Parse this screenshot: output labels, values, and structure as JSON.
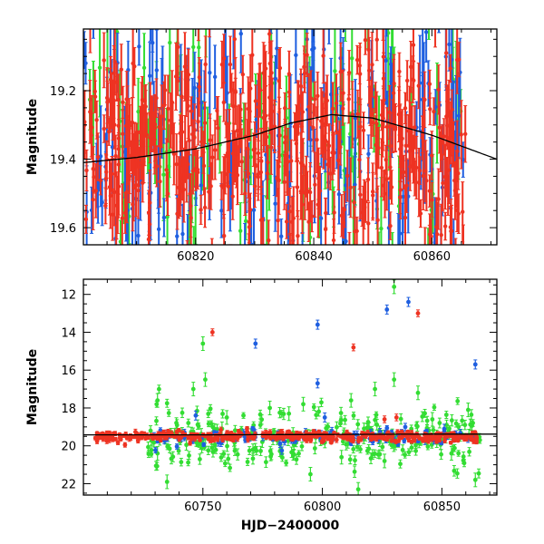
{
  "chart_data": [
    {
      "type": "scatter",
      "title": "",
      "xlabel": "",
      "ylabel": "Magnitude",
      "xlim": [
        60801,
        60871
      ],
      "ylim": [
        19.65,
        19.02
      ],
      "y_inverted": true,
      "xticks": [
        60820,
        60840,
        60860
      ],
      "xtick_labels": [
        "60820",
        "60840",
        "60860"
      ],
      "yticks": [
        19.2,
        19.4,
        19.6
      ],
      "ytick_labels": [
        "19.2",
        "19.4",
        "19.6"
      ],
      "description_of_series": "dense overlapping photometry in three bands with large error bars plus a smooth model curve",
      "series": [
        {
          "color": "#33dd33",
          "n_points": 120,
          "x_range": [
            60801,
            60866
          ],
          "y_center": 19.35,
          "y_spread": 0.2,
          "err": [
            0.05,
            0.15
          ]
        },
        {
          "color": "#1f5fe0",
          "n_points": 200,
          "x_range": [
            60801,
            60866
          ],
          "y_center": 19.35,
          "y_spread": 0.22,
          "err": [
            0.05,
            0.15
          ]
        },
        {
          "color": "#ee3322",
          "n_points": 520,
          "x_range": [
            60801,
            60866
          ],
          "y_center": 19.36,
          "y_spread": 0.17,
          "err": [
            0.04,
            0.1
          ]
        }
      ],
      "model_curve": {
        "color": "#000000",
        "x": [
          60801,
          60810,
          60820,
          60830,
          60836,
          60843,
          60850,
          60860,
          60871
        ],
        "y": [
          19.41,
          19.395,
          19.37,
          19.33,
          19.295,
          19.27,
          19.28,
          19.33,
          19.4
        ]
      }
    },
    {
      "type": "scatter",
      "title": "",
      "xlabel": "HJD−2400000",
      "ylabel": "Magnitude",
      "xlim": [
        60700,
        60873
      ],
      "ylim": [
        22.6,
        11.2
      ],
      "y_inverted": true,
      "xticks": [
        60750,
        60800,
        60850
      ],
      "xtick_labels": [
        "60750",
        "60800",
        "60850"
      ],
      "yticks": [
        12,
        14,
        16,
        18,
        20,
        22
      ],
      "ytick_labels": [
        "12",
        "14",
        "16",
        "18",
        "20",
        "22"
      ],
      "series": [
        {
          "color": "#33dd33",
          "n_points": 260,
          "x_range": [
            60727,
            60866
          ],
          "y_center": 19.6,
          "y_spread": 1.3,
          "err": [
            0.15,
            0.3
          ],
          "outliers": [
            [
              60731,
              17.6
            ],
            [
              60731,
              20.4
            ],
            [
              60735,
              21.9
            ],
            [
              60746,
              17.0
            ],
            [
              60750,
              14.6
            ],
            [
              60751,
              16.5
            ],
            [
              60758,
              19.1
            ],
            [
              60760,
              18.5
            ],
            [
              60778,
              18.0
            ],
            [
              60786,
              18.3
            ],
            [
              60792,
              17.8
            ],
            [
              60795,
              21.5
            ],
            [
              60808,
              20.6
            ],
            [
              60812,
              17.6
            ],
            [
              60815,
              22.3
            ],
            [
              60822,
              17.0
            ],
            [
              60826,
              20.8
            ],
            [
              60830,
              11.6
            ],
            [
              60830,
              16.5
            ],
            [
              60840,
              17.2
            ],
            [
              60846,
              18.6
            ],
            [
              60854,
              20.4
            ],
            [
              60861,
              18.1
            ],
            [
              60864,
              21.8
            ]
          ]
        },
        {
          "color": "#1f5fe0",
          "n_points": 120,
          "x_range": [
            60727,
            60866
          ],
          "y_center": 19.55,
          "y_spread": 0.35,
          "err": [
            0.08,
            0.2
          ],
          "outliers": [
            [
              60747,
              18.4
            ],
            [
              60772,
              14.6
            ],
            [
              60798,
              13.6
            ],
            [
              60798,
              16.7
            ],
            [
              60801,
              18.5
            ],
            [
              60827,
              12.8
            ],
            [
              60836,
              12.4
            ],
            [
              60864,
              15.7
            ],
            [
              60851,
              19.1
            ]
          ]
        },
        {
          "color": "#ee3322",
          "n_points": 420,
          "x_range": [
            60705,
            60866
          ],
          "y_center": 19.5,
          "y_spread": 0.22,
          "err": [
            0.06,
            0.15
          ],
          "outliers": [
            [
              60754,
              14.0
            ],
            [
              60813,
              14.8
            ],
            [
              60840,
              13.0
            ],
            [
              60826,
              18.6
            ],
            [
              60831,
              18.5
            ]
          ]
        }
      ],
      "model_curve": {
        "color": "#000000",
        "x": [
          60700,
          60750,
          60800,
          60850,
          60873
        ],
        "y": [
          19.42,
          19.42,
          19.4,
          19.38,
          19.38
        ]
      }
    }
  ]
}
